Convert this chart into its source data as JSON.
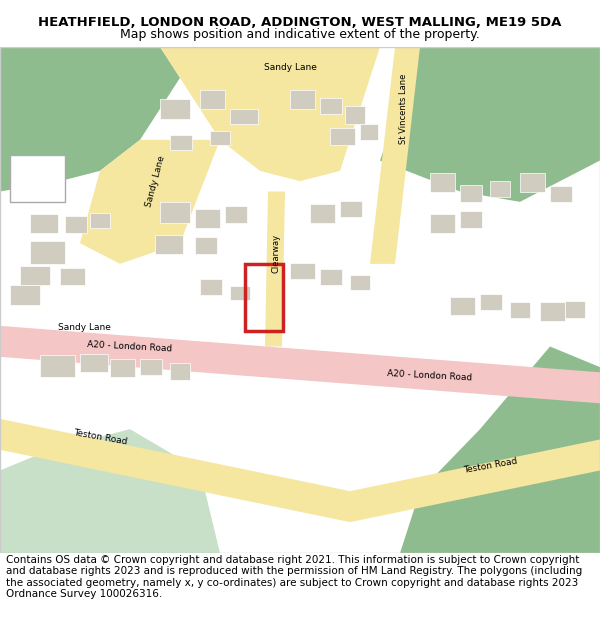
{
  "title_line1": "HEATHFIELD, LONDON ROAD, ADDINGTON, WEST MALLING, ME19 5DA",
  "title_line2": "Map shows position and indicative extent of the property.",
  "footer_text": "Contains OS data © Crown copyright and database right 2021. This information is subject to Crown copyright and database rights 2023 and is reproduced with the permission of HM Land Registry. The polygons (including the associated geometry, namely x, y co-ordinates) are subject to Crown copyright and database rights 2023 Ordnance Survey 100026316.",
  "title_fontsize": 9.5,
  "footer_fontsize": 7.5,
  "map_bg": "#f5f0e8",
  "road_pink": "#f5c6c6",
  "road_yellow": "#f5e6a0",
  "green_area": "#8fbc8f",
  "light_green": "#c8dfc8",
  "building_gray": "#d0ccc0",
  "plot_red": "#cc2222",
  "border_color": "#cccccc",
  "fig_width": 6.0,
  "fig_height": 6.25,
  "dpi": 100
}
